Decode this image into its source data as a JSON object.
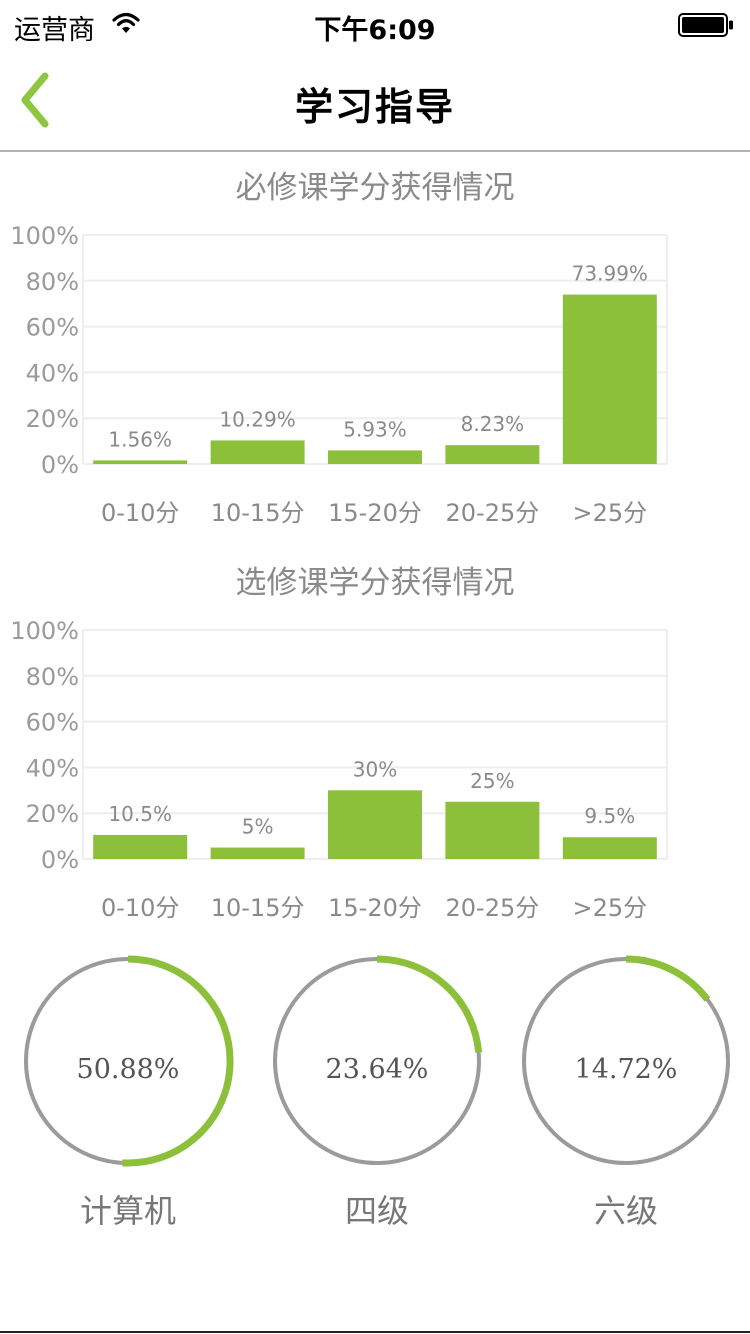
{
  "status_bar": {
    "carrier": "运营商",
    "time": "下午6:09",
    "wifi_icon": "wifi-icon",
    "battery_icon": "battery-full-icon"
  },
  "nav": {
    "title": "学习指导",
    "back_icon": "chevron-left-icon",
    "accent_color": "#8dc63f"
  },
  "y_axis_ticks": [
    "100%",
    "80%",
    "60%",
    "40%",
    "20%",
    "0%"
  ],
  "chart_data": [
    {
      "type": "bar",
      "title": "必修课学分获得情况",
      "categories": [
        "0-10分",
        "10-15分",
        "15-20分",
        "20-25分",
        ">25分"
      ],
      "values": [
        1.56,
        10.29,
        5.93,
        8.23,
        73.99
      ],
      "value_labels": [
        "1.56%",
        "10.29%",
        "5.93%",
        "8.23%",
        "73.99%"
      ],
      "ylim": [
        0,
        100
      ],
      "grid": true,
      "bar_color": "#8dc03a"
    },
    {
      "type": "bar",
      "title": "选修课学分获得情况",
      "categories": [
        "0-10分",
        "10-15分",
        "15-20分",
        "20-25分",
        ">25分"
      ],
      "values": [
        10.5,
        5,
        30,
        25,
        9.5
      ],
      "value_labels": [
        "10.5%",
        "5%",
        "30%",
        "25%",
        "9.5%"
      ],
      "ylim": [
        0,
        100
      ],
      "grid": true,
      "bar_color": "#8dc03a"
    }
  ],
  "gauges": [
    {
      "label": "计算机",
      "value": 50.88,
      "value_text": "50.88%"
    },
    {
      "label": "四级",
      "value": 23.64,
      "value_text": "23.64%"
    },
    {
      "label": "六级",
      "value": 14.72,
      "value_text": "14.72%"
    }
  ],
  "colors": {
    "accent": "#8dc03a",
    "ring": "#9b9b9b",
    "grid": "#eeeeee"
  }
}
